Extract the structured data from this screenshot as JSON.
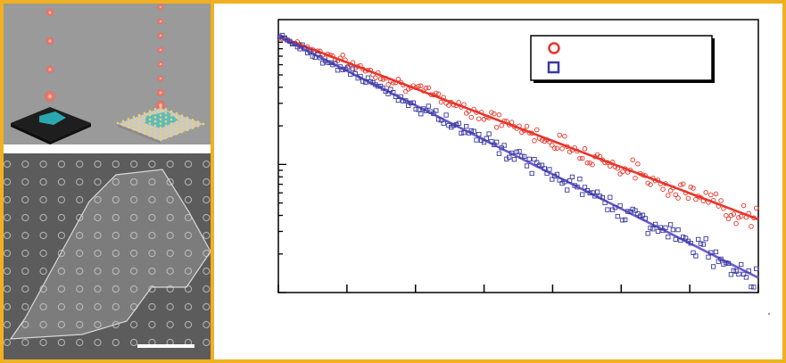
{
  "figure": {
    "border_color": "#f0b022",
    "render_panel": {
      "background": "#9a9a9a",
      "beam_color": "#ff5a4a",
      "flake_color": "#2aa7b0",
      "substrate_color": "#2a2a2a"
    },
    "sem_panel": {
      "background": "#5c5c5c",
      "scale_bar_color": "#ffffff"
    }
  },
  "chart_data": {
    "type": "scatter",
    "title": "",
    "xlabel": "",
    "ylabel": "",
    "yscale": "log",
    "xlim": [
      0,
      7
    ],
    "ylim": [
      0.01,
      1.35
    ],
    "grid": false,
    "legend": {
      "placement": "top-right",
      "entries": []
    },
    "series": [
      {
        "marker": "circle",
        "color": "#e8352a",
        "fit_line_color": "#e8352a",
        "decay_rate": 0.47,
        "points": 190
      },
      {
        "marker": "square",
        "color": "#3a3aa0",
        "fit_line_color": "#6a5acd",
        "decay_rate": 0.62,
        "points": 190
      }
    ]
  }
}
